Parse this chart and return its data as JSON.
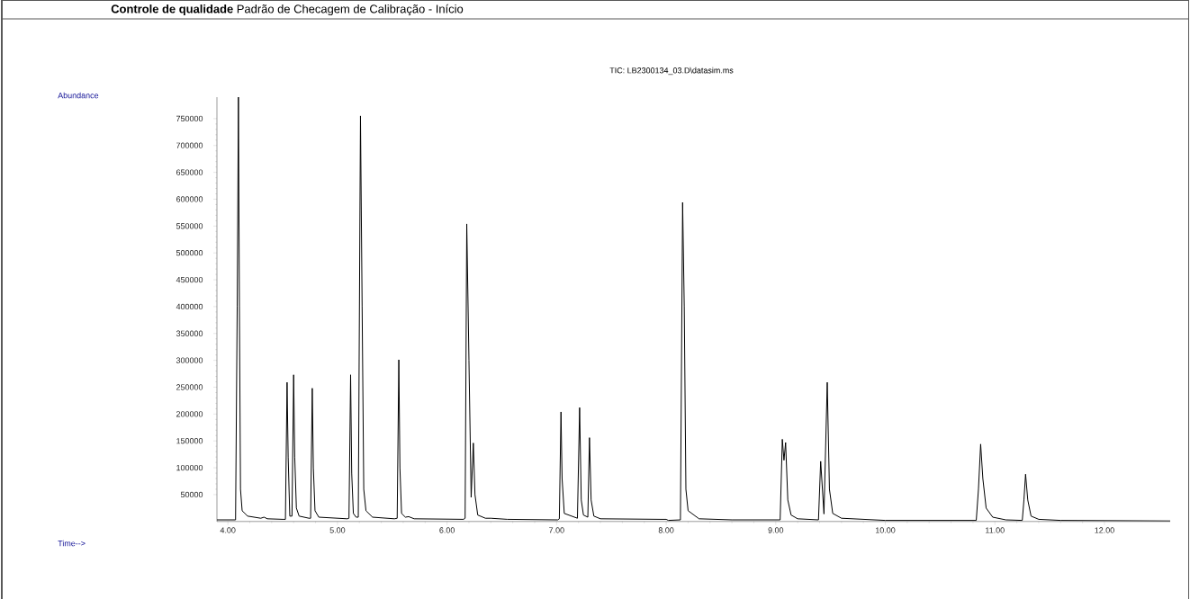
{
  "chart_data": {
    "type": "line",
    "title": "**Controle de qualidade** Padrão de Checagem de Calibração - Início",
    "subtitle": "TIC: LB2300134_03.D\\datasim.ms",
    "annotations": [
      "Abundance",
      "Time-->"
    ],
    "x": [
      3.9,
      4.05,
      4.07,
      4.085,
      4.096,
      4.105,
      4.115,
      4.13,
      4.18,
      4.3,
      4.33,
      4.36,
      4.5,
      4.525,
      4.54,
      4.55,
      4.565,
      4.585,
      4.6,
      4.61,
      4.625,
      4.65,
      4.74,
      4.755,
      4.77,
      4.78,
      4.795,
      4.83,
      5.09,
      5.105,
      5.12,
      5.13,
      5.145,
      5.17,
      5.19,
      5.21,
      5.225,
      5.24,
      5.26,
      5.32,
      5.52,
      5.545,
      5.56,
      5.57,
      5.585,
      5.62,
      5.65,
      5.7,
      6.15,
      6.165,
      6.18,
      6.2,
      6.22,
      6.24,
      6.255,
      6.28,
      6.35,
      6.4,
      6.55,
      7.01,
      7.025,
      7.04,
      7.05,
      7.07,
      7.19,
      7.21,
      7.225,
      7.245,
      7.285,
      7.3,
      7.315,
      7.34,
      7.4,
      7.95,
      8.0,
      8.02,
      8.13,
      8.15,
      8.165,
      8.18,
      8.2,
      8.3,
      8.6,
      9.04,
      9.06,
      9.075,
      9.09,
      9.11,
      9.14,
      9.2,
      9.39,
      9.41,
      9.44,
      9.47,
      9.49,
      9.52,
      9.6,
      10.0,
      10.5,
      10.83,
      10.85,
      10.87,
      10.89,
      10.92,
      10.98,
      11.1,
      11.25,
      11.265,
      11.28,
      11.3,
      11.33,
      11.4,
      11.6,
      12.6
    ],
    "series": [
      {
        "color": "#000000",
        "values": [
          3000,
          3000,
          3000,
          400000,
          790000,
          400000,
          60000,
          20000,
          10000,
          6000,
          8000,
          5000,
          4000,
          4000,
          259000,
          120000,
          10000,
          10000,
          273000,
          120000,
          25000,
          10000,
          6000,
          6000,
          248000,
          100000,
          20000,
          8000,
          5000,
          6000,
          273000,
          90000,
          15000,
          8000,
          8000,
          755000,
          400000,
          60000,
          20000,
          8000,
          5000,
          6000,
          301000,
          100000,
          15000,
          8000,
          9000,
          5000,
          4000,
          6000,
          554000,
          300000,
          45000,
          146000,
          50000,
          12000,
          6000,
          6000,
          4000,
          3000,
          5000,
          204000,
          80000,
          15000,
          6000,
          212000,
          40000,
          12000,
          8000,
          156000,
          40000,
          10000,
          5000,
          4000,
          4000,
          2000,
          3000,
          594000,
          400000,
          60000,
          20000,
          5000,
          3000,
          3000,
          153000,
          114000,
          147000,
          40000,
          12000,
          5000,
          3000,
          112000,
          14000,
          259000,
          60000,
          15000,
          6000,
          2000,
          2000,
          2000,
          60000,
          144000,
          80000,
          25000,
          8000,
          3000,
          2000,
          40000,
          88000,
          40000,
          10000,
          4000,
          2000,
          1000
        ]
      }
    ],
    "xlim": [
      3.9,
      12.6
    ],
    "ylim": [
      0,
      790000
    ],
    "xticks": [
      {
        "value": 4,
        "label": "4.00"
      },
      {
        "value": 5,
        "label": "5.00"
      },
      {
        "value": 6,
        "label": "6.00"
      },
      {
        "value": 7,
        "label": "7.00"
      },
      {
        "value": 8,
        "label": "8.00"
      },
      {
        "value": 9,
        "label": "9.00"
      },
      {
        "value": 10,
        "label": "10.00"
      },
      {
        "value": 11,
        "label": "11.00"
      },
      {
        "value": 12,
        "label": "12.00"
      }
    ],
    "yticks": [
      50000,
      100000,
      150000,
      200000,
      250000,
      300000,
      350000,
      400000,
      450000,
      500000,
      550000,
      600000,
      650000,
      700000,
      750000
    ],
    "marker": "none",
    "line_style": "solid"
  }
}
